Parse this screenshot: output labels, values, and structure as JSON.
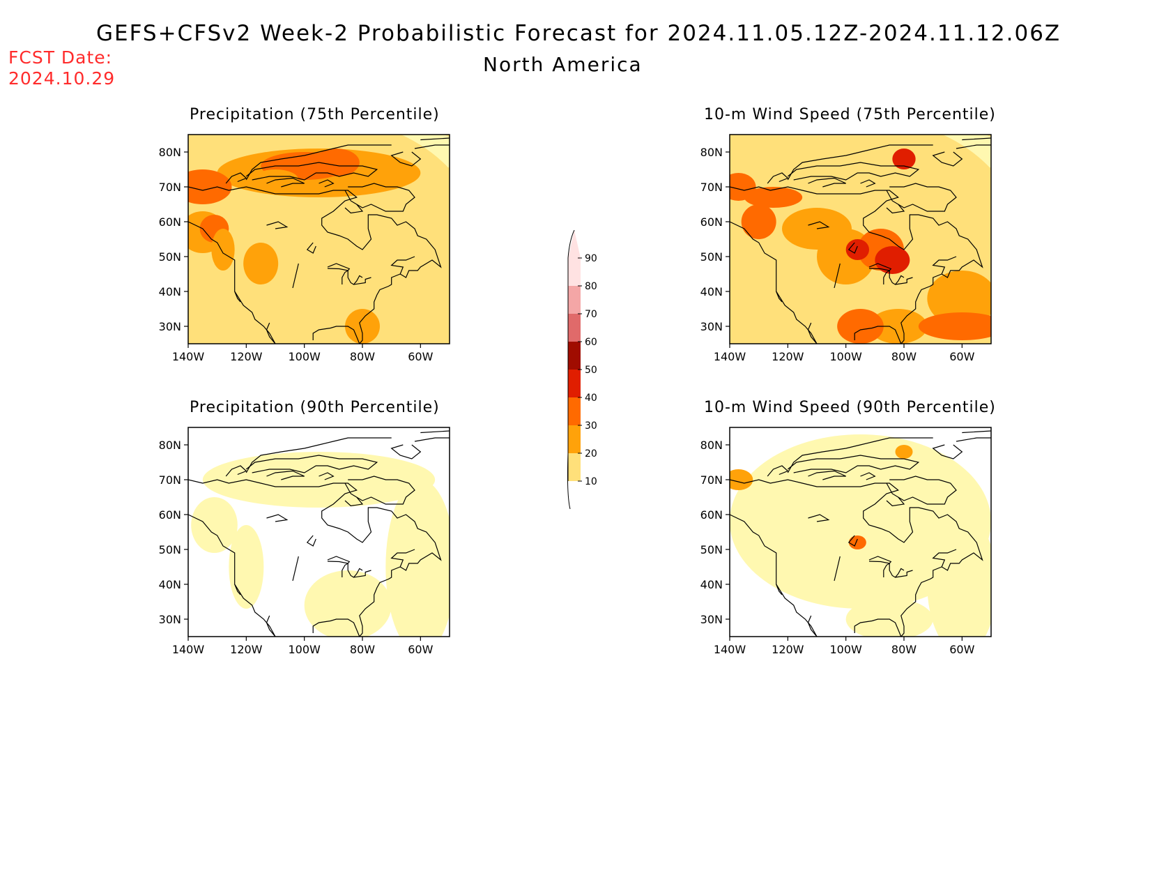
{
  "header": {
    "title": "GEFS+CFSv2 Week-2 Probabilistic Forecast for 2024.11.05.12Z-2024.11.12.06Z",
    "subtitle": "North America",
    "fcst_label": "FCST Date:",
    "fcst_date": "2024.10.29"
  },
  "panels": [
    {
      "id": "precip75",
      "title": "Precipitation (75th Percentile)"
    },
    {
      "id": "wind75",
      "title": "10-m Wind Speed (75th Percentile)"
    },
    {
      "id": "precip90",
      "title": "Precipitation (90th Percentile)"
    },
    {
      "id": "wind90",
      "title": "10-m Wind Speed (90th Percentile)"
    }
  ],
  "axes": {
    "lat_labels": [
      "80N",
      "70N",
      "60N",
      "50N",
      "40N",
      "30N"
    ],
    "lon_labels": [
      "140W",
      "120W",
      "100W",
      "80W",
      "60W"
    ]
  },
  "colorbar": {
    "levels": [
      "10",
      "20",
      "30",
      "40",
      "50",
      "60",
      "70",
      "80",
      "90"
    ],
    "colors": [
      "#fff8b0",
      "#ffe07a",
      "#ffa20a",
      "#ff6a00",
      "#e01e00",
      "#a00c00",
      "#e06a6a",
      "#f4a6a6",
      "#ffe2e2"
    ]
  }
}
